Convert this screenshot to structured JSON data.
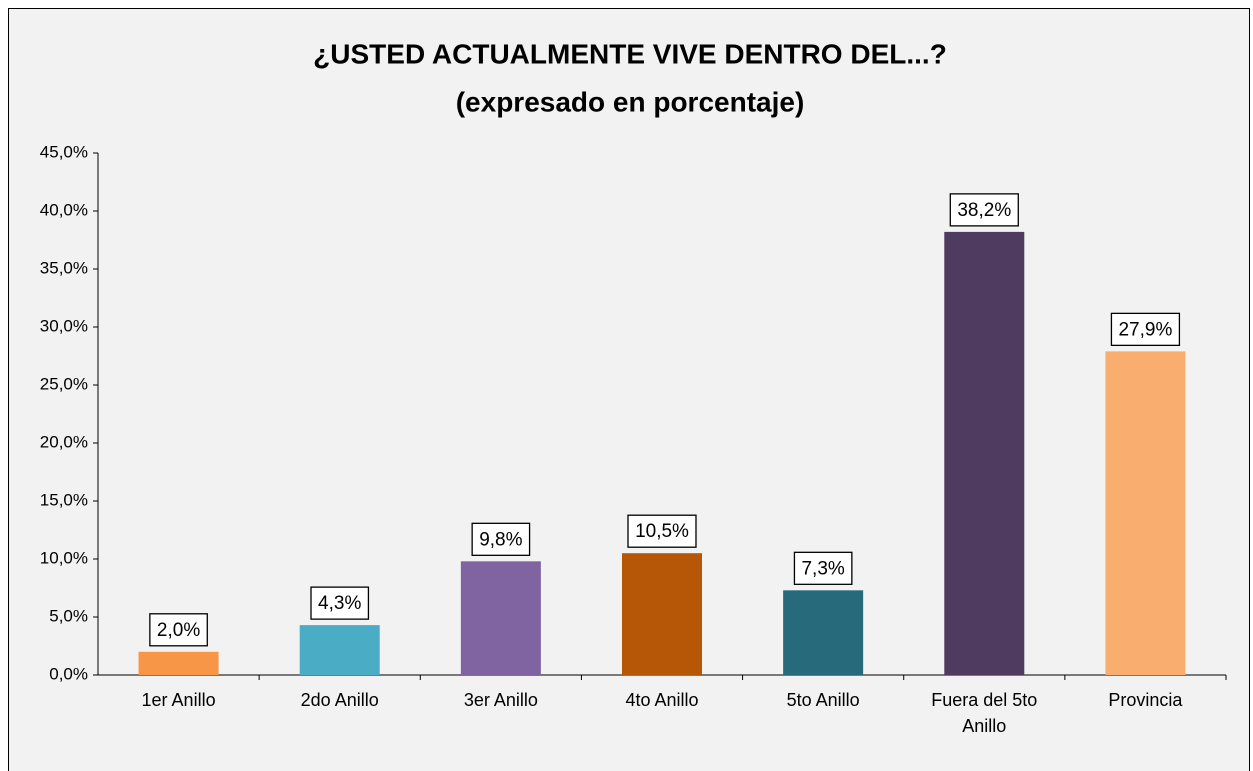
{
  "chart_data": {
    "type": "bar",
    "title": "¿USTED ACTUALMENTE VIVE DENTRO DEL...?",
    "subtitle": "(expresado en porcentaje)",
    "categories": [
      "1er Anillo",
      "2do Anillo",
      "3er Anillo",
      "4to Anillo",
      "5to Anillo",
      "Fuera del 5to Anillo",
      "Provincia"
    ],
    "values": [
      2.0,
      4.3,
      9.8,
      10.5,
      7.3,
      38.2,
      27.9
    ],
    "value_labels": [
      "2,0%",
      "4,3%",
      "9,8%",
      "10,5%",
      "7,3%",
      "38,2%",
      "27,9%"
    ],
    "colors": [
      "#f79646",
      "#4bacc6",
      "#8064a2",
      "#b65708",
      "#276a7c",
      "#4f3b5f",
      "#f9ad6e"
    ],
    "ylim": [
      0,
      45
    ],
    "yticks": [
      {
        "value": 0,
        "label": "0,0%"
      },
      {
        "value": 5,
        "label": "5,0%"
      },
      {
        "value": 10,
        "label": "10,0%"
      },
      {
        "value": 15,
        "label": "15,0%"
      },
      {
        "value": 20,
        "label": "20,0%"
      },
      {
        "value": 25,
        "label": "25,0%"
      },
      {
        "value": 30,
        "label": "30,0%"
      },
      {
        "value": 35,
        "label": "35,0%"
      },
      {
        "value": 40,
        "label": "40,0%"
      },
      {
        "value": 45,
        "label": "45,0%"
      }
    ],
    "grid": false
  }
}
